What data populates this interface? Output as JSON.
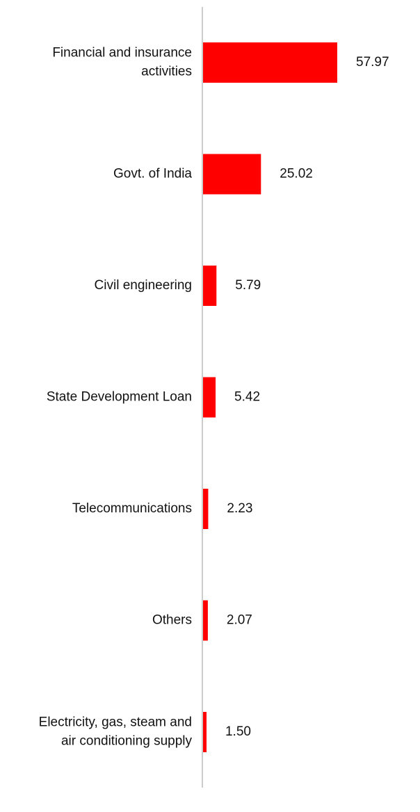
{
  "chart_data": {
    "type": "bar",
    "orientation": "horizontal",
    "categories": [
      "Financial and insurance activities",
      "Govt. of India",
      "Civil engineering",
      "State Development Loan",
      "Telecommunications",
      "Others",
      "Electricity, gas, steam and air conditioning supply"
    ],
    "category_label_lines": [
      [
        "Financial and insurance",
        "activities"
      ],
      [
        "Govt. of India"
      ],
      [
        "Civil engineering"
      ],
      [
        "State Development Loan"
      ],
      [
        "Telecommunications"
      ],
      [
        "Others"
      ],
      [
        "Electricity, gas, steam and",
        "air conditioning supply"
      ]
    ],
    "values": [
      57.97,
      25.02,
      5.79,
      5.42,
      2.23,
      2.07,
      1.5
    ],
    "value_labels": [
      "57.97",
      "25.02",
      "5.79",
      "5.42",
      "2.23",
      "2.07",
      "1.50"
    ],
    "title": "",
    "xlabel": "",
    "ylabel": "",
    "grid": false,
    "legend": "none",
    "bar_color": "#ff0000",
    "axis_color": "#cccccc"
  }
}
